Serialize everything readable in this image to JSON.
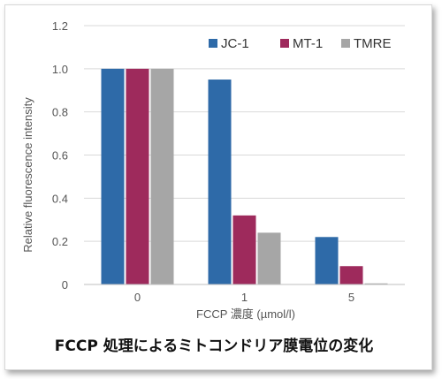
{
  "chart_data": {
    "type": "bar",
    "title": "FCCP 処理によるミトコンドリア膜電位の変化",
    "xlabel": "FCCP 濃度 (µmol/l)",
    "ylabel": "Relative fluorescence intensity",
    "categories": [
      "0",
      "1",
      "5"
    ],
    "series": [
      {
        "name": "JC-1",
        "values": [
          1.0,
          0.95,
          0.22
        ],
        "color": "#2e6aa8"
      },
      {
        "name": "MT-1",
        "values": [
          1.0,
          0.32,
          0.085
        ],
        "color": "#9e2a5c"
      },
      {
        "name": "TMRE",
        "values": [
          1.0,
          0.24,
          0.005
        ],
        "color": "#a6a6a6"
      }
    ],
    "ylim": [
      0,
      1.2
    ],
    "yticks": [
      "0",
      "0.2",
      "0.4",
      "0.6",
      "0.8",
      "1.0",
      "1.2"
    ],
    "grid": true,
    "legend_position": "top-right"
  }
}
